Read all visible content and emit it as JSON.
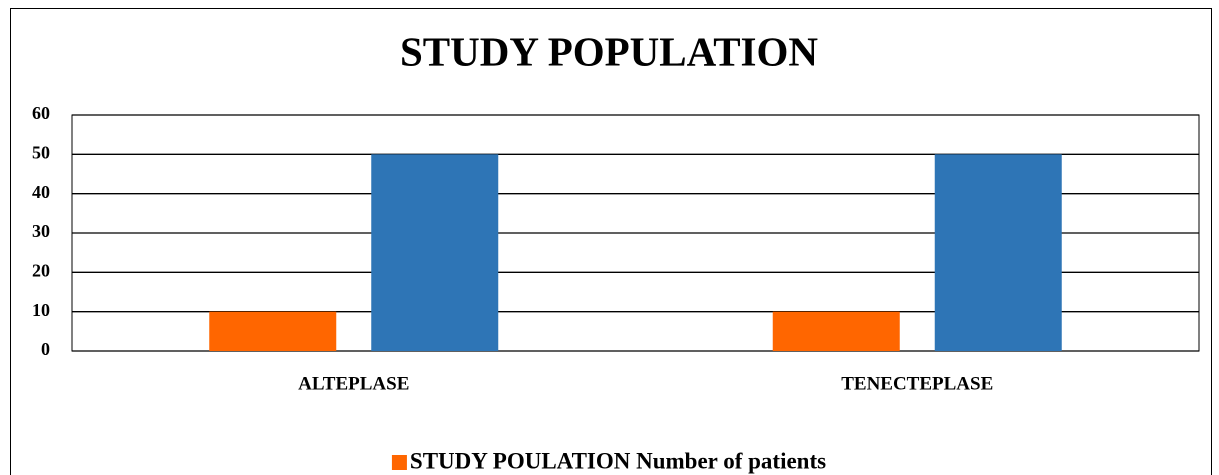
{
  "chart_data": {
    "type": "bar",
    "title": "STUDY POPULATION",
    "categories": [
      "ALTEPLASE",
      "TENECTEPLASE"
    ],
    "series": [
      {
        "name": "STUDY POULATION Number of patients",
        "color": "#ff6600",
        "values": [
          10,
          10
        ]
      },
      {
        "color": "#2e75b6",
        "values": [
          50,
          50
        ]
      }
    ],
    "ylim": [
      0,
      60
    ],
    "yticks": [
      0,
      10,
      20,
      30,
      40,
      50,
      60
    ],
    "grid": true,
    "legend": "bottom"
  }
}
